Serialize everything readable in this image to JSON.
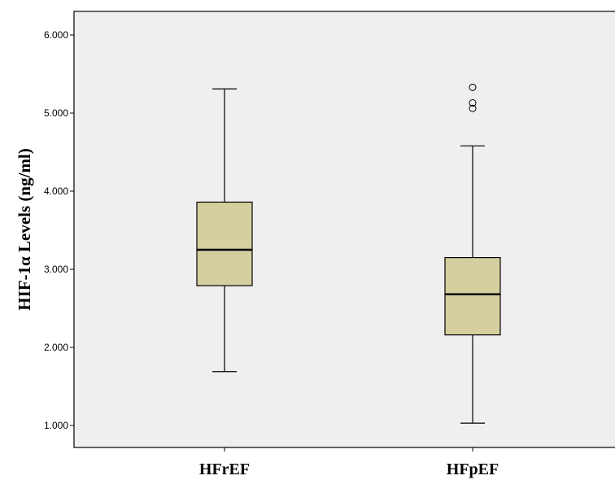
{
  "chart_data": {
    "type": "boxplot",
    "title": "",
    "xlabel": "",
    "ylabel": "HIF-1α Levels (ng/ml)",
    "ylim": [
      0.8,
      6.3
    ],
    "yticks": [
      "1.000",
      "2.000",
      "3.000",
      "4.000",
      "5.000",
      "6.000"
    ],
    "yticks_values": [
      1,
      2,
      3,
      4,
      5,
      6
    ],
    "grid": false,
    "colors": {
      "plot_bg": "#efefef",
      "box_fill": "#d5cf9f",
      "stroke": "#000000"
    },
    "categories": [
      "HFrEF",
      "HFpEF"
    ],
    "boxes": [
      {
        "category": "HFrEF",
        "min": 1.69,
        "q1": 2.79,
        "median": 3.25,
        "q3": 3.86,
        "max": 5.31,
        "outliers": []
      },
      {
        "category": "HFpEF",
        "min": 1.03,
        "q1": 2.16,
        "median": 2.68,
        "q3": 3.15,
        "max": 4.58,
        "outliers": [
          5.06,
          5.13,
          5.33
        ]
      }
    ]
  }
}
